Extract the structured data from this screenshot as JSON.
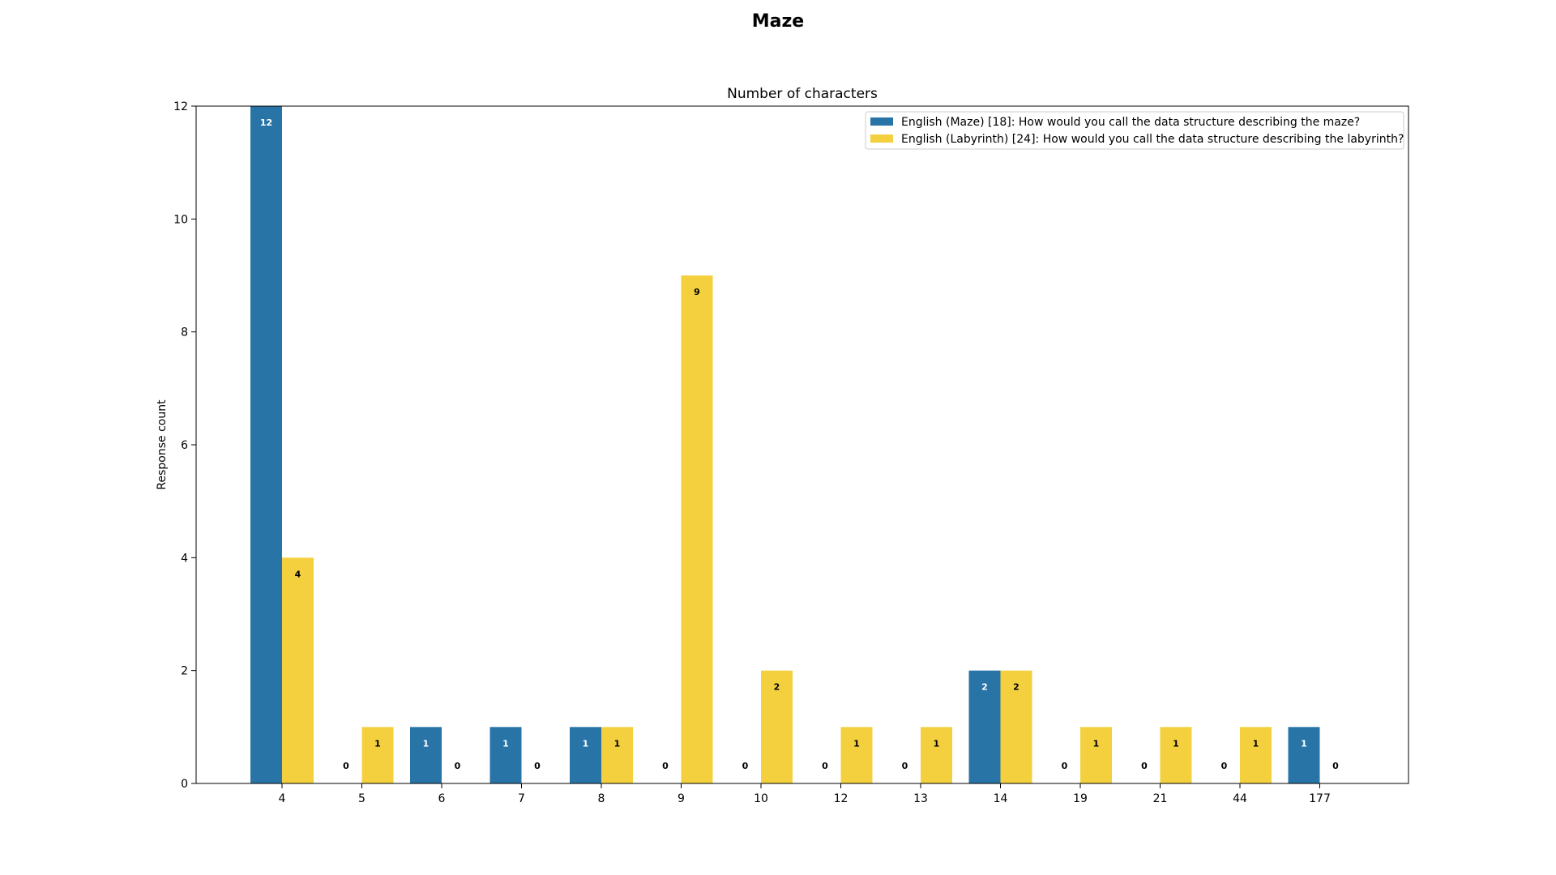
{
  "figure": {
    "title": "Maze"
  },
  "chart_data": {
    "type": "bar",
    "title": "Number of characters",
    "xlabel": "",
    "ylabel": "Response count",
    "categories": [
      "4",
      "5",
      "6",
      "7",
      "8",
      "9",
      "10",
      "12",
      "13",
      "14",
      "19",
      "21",
      "44",
      "177"
    ],
    "series": [
      {
        "name": "English (Maze) [18]: How would you call the data structure describing the maze?",
        "color": "#2874a6",
        "label_color": "#ffffff",
        "values": [
          12,
          0,
          1,
          1,
          1,
          0,
          0,
          0,
          0,
          2,
          0,
          0,
          0,
          1
        ]
      },
      {
        "name": "English (Labyrinth) [24]: How would you call the data structure describing the labyrinth?",
        "color": "#f4d03f",
        "label_color": "#000000",
        "values": [
          4,
          1,
          0,
          0,
          1,
          9,
          2,
          1,
          1,
          2,
          1,
          1,
          1,
          0
        ]
      }
    ],
    "ylim": [
      0,
      12
    ],
    "yticks": [
      "0",
      "2",
      "4",
      "6",
      "8",
      "10",
      "12"
    ],
    "grid": false,
    "legend_position": "top-right"
  }
}
